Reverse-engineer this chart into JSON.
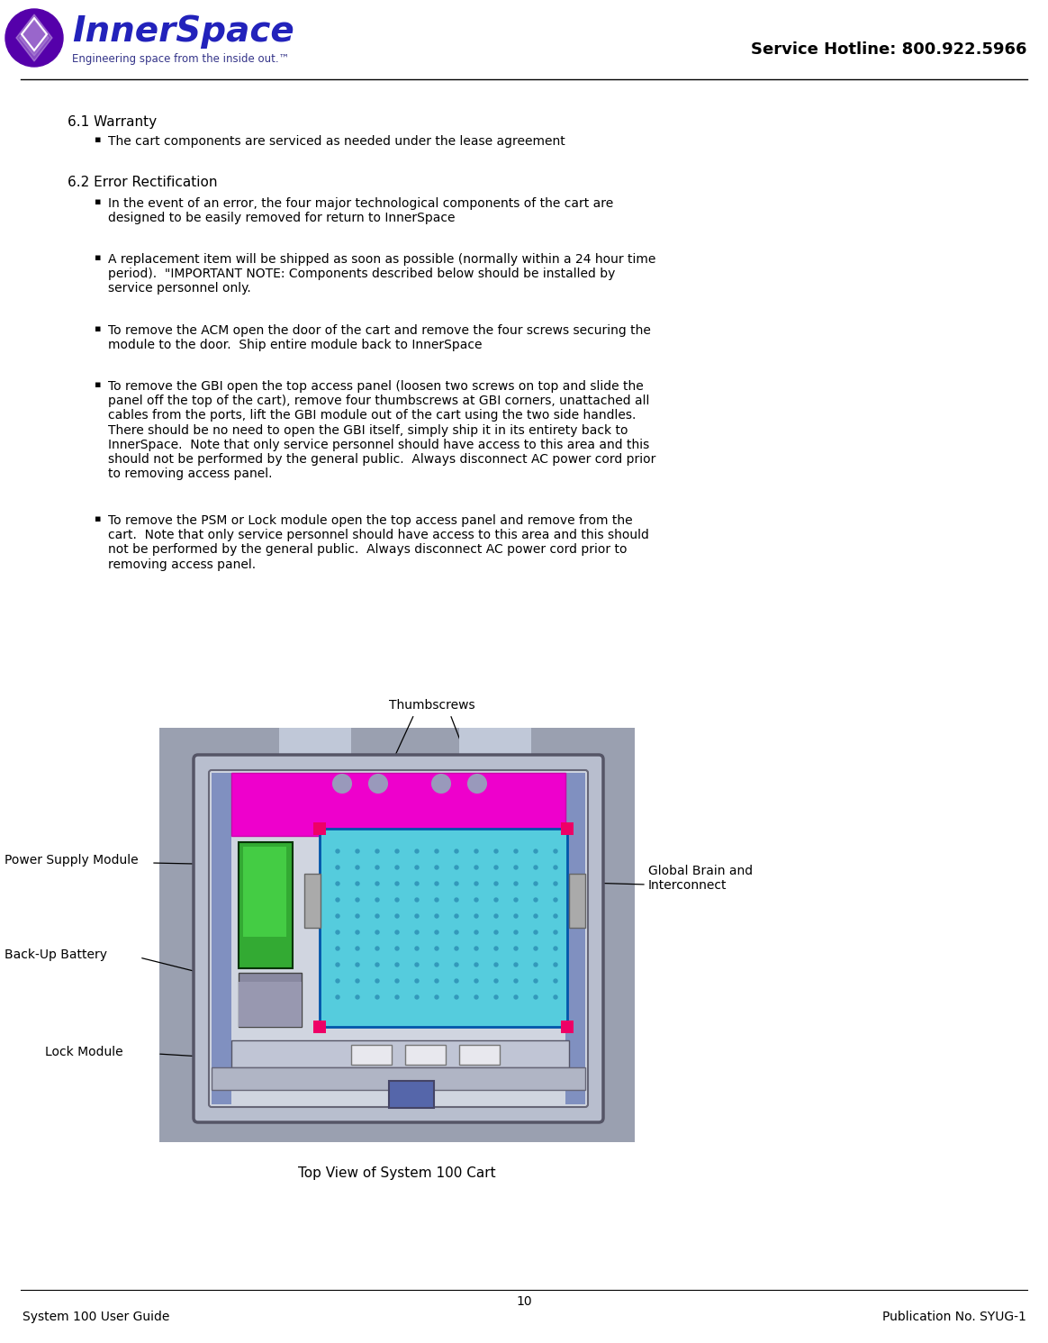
{
  "page_width": 11.64,
  "page_height": 14.91,
  "bg_color": "#ffffff",
  "hotline_text": "Service Hotline: 800.922.5966",
  "logo_color": "#2222bb",
  "logo_purple": "#5500aa",
  "section_title_1": "6.1 Warranty",
  "bullet_1_1": "The cart components are serviced as needed under the lease agreement",
  "section_title_2": "6.2 Error Rectification",
  "bullet_2_1": "In the event of an error, the four major technological components of the cart are\ndesigned to be easily removed for return to InnerSpace",
  "bullet_2_2": "A replacement item will be shipped as soon as possible (normally within a 24 hour time\nperiod).  \"IMPORTANT NOTE: Components described below should be installed by\nservice personnel only.",
  "bullet_2_3": "To remove the ACM open the door of the cart and remove the four screws securing the\nmodule to the door.  Ship entire module back to InnerSpace",
  "bullet_2_4": "To remove the GBI open the top access panel (loosen two screws on top and slide the\npanel off the top of the cart), remove four thumbscrews at GBI corners, unattached all\ncables from the ports, lift the GBI module out of the cart using the two side handles.\nThere should be no need to open the GBI itself, simply ship it in its entirety back to\nInnerSpace.  Note that only service personnel should have access to this area and this\nshould not be performed by the general public.  Always disconnect AC power cord prior\nto removing access panel.",
  "bullet_2_5": "To remove the PSM or Lock module open the top access panel and remove from the\ncart.  Note that only service personnel should have access to this area and this should\nnot be performed by the general public.  Always disconnect AC power cord prior to\nremoving access panel.",
  "diagram_caption": "Top View of System 100 Cart",
  "label_thumbscrews": "Thumbscrews",
  "label_psm": "Power Supply Module",
  "label_battery": "Back-Up Battery",
  "label_lock": "Lock Module",
  "label_gbi": "Global Brain and\nInterconnect",
  "footer_page_num": "10",
  "footer_left": "System 100 User Guide",
  "footer_right": "Publication No. SYUG-1",
  "text_color": "#000000",
  "section_fontsize": 11,
  "body_fontsize": 10,
  "label_fontsize": 10,
  "footer_fontsize": 10,
  "hotline_fontsize": 13
}
